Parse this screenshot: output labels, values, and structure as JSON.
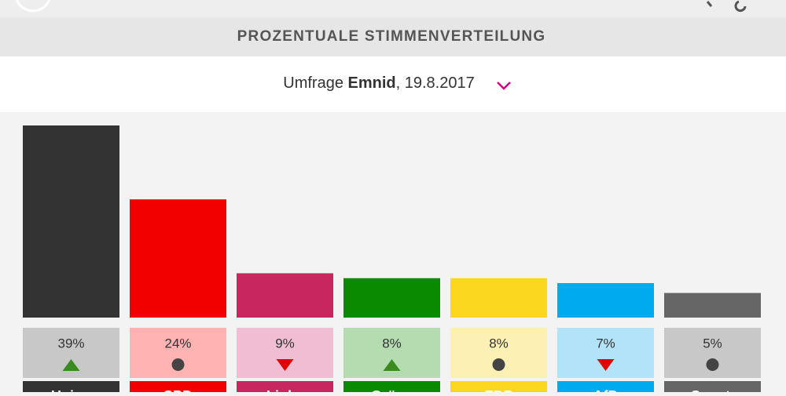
{
  "header": {
    "section_title": "PROZENTUALE STIMMENVERTEILUNG",
    "survey_prefix": "Umfrage",
    "institute": "Emnid",
    "survey_suffix": ", 19.8.2017"
  },
  "chart_data": {
    "type": "bar",
    "categories": [
      "Union",
      "SPD",
      "Linke",
      "Grüne",
      "FDP",
      "AfD",
      "Sonst."
    ],
    "values": [
      39,
      24,
      9,
      8,
      8,
      7,
      5
    ],
    "value_labels": [
      "39%",
      "24%",
      "9%",
      "8%",
      "8%",
      "7%",
      "5%"
    ],
    "colors": [
      "#333333",
      "#f20000",
      "#c8265e",
      "#0a8a00",
      "#fbd81f",
      "#00aaee",
      "#666666"
    ],
    "light_colors": [
      "#c8c8c8",
      "#ffb3b3",
      "#f0bdd2",
      "#b5dcb0",
      "#fdf0b5",
      "#b3e3f8",
      "#c8c8c8"
    ],
    "trends": [
      "up",
      "same",
      "down",
      "up",
      "same",
      "down",
      "same"
    ]
  }
}
